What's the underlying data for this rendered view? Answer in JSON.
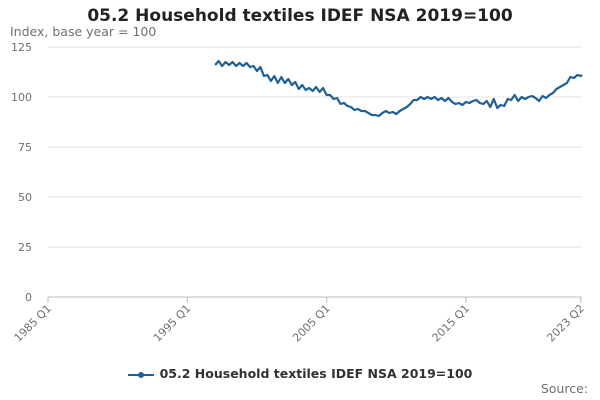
{
  "chart_data": {
    "type": "line",
    "title": "05.2 Household textiles IDEF NSA 2019=100",
    "ylabel": "Index, base year = 100",
    "xlabel": "",
    "x_ticks": [
      "1985 Q1",
      "1995 Q1",
      "2005 Q1",
      "2015 Q1",
      "2023 Q2"
    ],
    "x_range": [
      1985.0,
      2023.333
    ],
    "ylim": [
      0,
      125
    ],
    "y_ticks": [
      0,
      25,
      50,
      75,
      100,
      125
    ],
    "grid": true,
    "legend_position": "bottom",
    "series": [
      {
        "name": "05.2 Household textiles IDEF NSA 2019=100",
        "color": "#206095",
        "points": [
          [
            1997.0,
            116
          ],
          [
            1997.25,
            118
          ],
          [
            1997.5,
            115.5
          ],
          [
            1997.75,
            117.5
          ],
          [
            1998.0,
            116
          ],
          [
            1998.25,
            117.5
          ],
          [
            1998.5,
            115.5
          ],
          [
            1998.75,
            117
          ],
          [
            1999.0,
            115.5
          ],
          [
            1999.25,
            117
          ],
          [
            1999.5,
            115
          ],
          [
            1999.75,
            115.5
          ],
          [
            2000.0,
            113
          ],
          [
            2000.25,
            115
          ],
          [
            2000.5,
            110.5
          ],
          [
            2000.75,
            111
          ],
          [
            2001.0,
            108
          ],
          [
            2001.25,
            110.5
          ],
          [
            2001.5,
            107
          ],
          [
            2001.75,
            110
          ],
          [
            2002.0,
            107
          ],
          [
            2002.25,
            109
          ],
          [
            2002.5,
            106
          ],
          [
            2002.75,
            107.5
          ],
          [
            2003.0,
            104
          ],
          [
            2003.25,
            106
          ],
          [
            2003.5,
            103.5
          ],
          [
            2003.75,
            104.5
          ],
          [
            2004.0,
            103
          ],
          [
            2004.25,
            105
          ],
          [
            2004.5,
            102.5
          ],
          [
            2004.75,
            104.5
          ],
          [
            2005.0,
            101
          ],
          [
            2005.25,
            101
          ],
          [
            2005.5,
            99
          ],
          [
            2005.75,
            99.5
          ],
          [
            2006.0,
            96.5
          ],
          [
            2006.25,
            97
          ],
          [
            2006.5,
            95.5
          ],
          [
            2006.75,
            95
          ],
          [
            2007.0,
            93.5
          ],
          [
            2007.25,
            94
          ],
          [
            2007.5,
            93
          ],
          [
            2007.75,
            93
          ],
          [
            2008.0,
            92
          ],
          [
            2008.25,
            91
          ],
          [
            2008.5,
            91
          ],
          [
            2008.75,
            90.5
          ],
          [
            2009.0,
            92
          ],
          [
            2009.25,
            93
          ],
          [
            2009.5,
            92
          ],
          [
            2009.75,
            92.5
          ],
          [
            2010.0,
            91.5
          ],
          [
            2010.25,
            93
          ],
          [
            2010.5,
            94
          ],
          [
            2010.75,
            95
          ],
          [
            2011.0,
            96.5
          ],
          [
            2011.25,
            98.5
          ],
          [
            2011.5,
            98.5
          ],
          [
            2011.75,
            100
          ],
          [
            2012.0,
            99
          ],
          [
            2012.25,
            100
          ],
          [
            2012.5,
            99
          ],
          [
            2012.75,
            100
          ],
          [
            2013.0,
            98.5
          ],
          [
            2013.25,
            99.5
          ],
          [
            2013.5,
            98
          ],
          [
            2013.75,
            99.5
          ],
          [
            2014.0,
            97.5
          ],
          [
            2014.25,
            96.5
          ],
          [
            2014.5,
            97
          ],
          [
            2014.75,
            96
          ],
          [
            2015.0,
            97.5
          ],
          [
            2015.25,
            97
          ],
          [
            2015.5,
            98
          ],
          [
            2015.75,
            98.5
          ],
          [
            2016.0,
            97
          ],
          [
            2016.25,
            96.5
          ],
          [
            2016.5,
            98
          ],
          [
            2016.75,
            95
          ],
          [
            2017.0,
            99
          ],
          [
            2017.25,
            94.5
          ],
          [
            2017.5,
            96
          ],
          [
            2017.75,
            95.5
          ],
          [
            2018.0,
            99
          ],
          [
            2018.25,
            98.5
          ],
          [
            2018.5,
            101
          ],
          [
            2018.75,
            98
          ],
          [
            2019.0,
            100
          ],
          [
            2019.25,
            99
          ],
          [
            2019.5,
            100
          ],
          [
            2019.75,
            100.5
          ],
          [
            2020.0,
            99.5
          ],
          [
            2020.25,
            98
          ],
          [
            2020.5,
            100.5
          ],
          [
            2020.75,
            99.5
          ],
          [
            2021.0,
            101
          ],
          [
            2021.25,
            102
          ],
          [
            2021.5,
            104
          ],
          [
            2021.75,
            105
          ],
          [
            2022.0,
            106
          ],
          [
            2022.25,
            107
          ],
          [
            2022.5,
            110
          ],
          [
            2022.75,
            109.5
          ],
          [
            2023.0,
            111
          ],
          [
            2023.25,
            110.5
          ],
          [
            2023.333,
            111
          ]
        ]
      }
    ]
  },
  "footer": {
    "source_label": "Source:"
  }
}
